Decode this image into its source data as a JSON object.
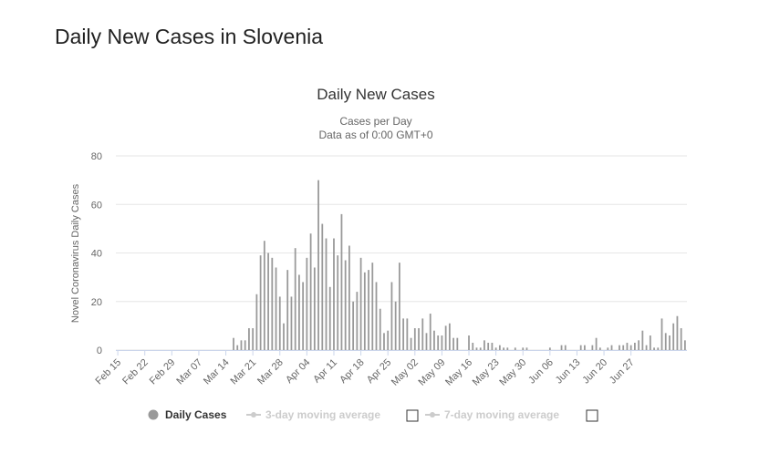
{
  "page": {
    "title": "Daily New Cases in Slovenia"
  },
  "chart_data": {
    "type": "bar",
    "title": "Daily New Cases",
    "subtitle_lines": [
      "Cases per Day",
      "Data as of 0:00 GMT+0"
    ],
    "ylabel": "Novel Coronavirus Daily Cases",
    "xlabel": "",
    "ylim": [
      0,
      80
    ],
    "yticks": [
      0,
      20,
      40,
      60,
      80
    ],
    "grid": true,
    "legend_position": "bottom-center",
    "categories_start": "2020-02-15",
    "x_tick_labels": [
      "Feb 15",
      "Feb 22",
      "Feb 29",
      "Mar 07",
      "Mar 14",
      "Mar 21",
      "Mar 28",
      "Apr 04",
      "Apr 11",
      "Apr 18",
      "Apr 25",
      "May 02",
      "May 09",
      "May 16",
      "May 23",
      "May 30",
      "Jun 06",
      "Jun 13",
      "Jun 20",
      "Jun 27"
    ],
    "series": [
      {
        "name": "Daily Cases",
        "color": "#999999",
        "values": [
          0,
          0,
          0,
          0,
          0,
          0,
          0,
          0,
          0,
          0,
          0,
          0,
          0,
          0,
          0,
          0,
          0,
          0,
          0,
          0,
          0,
          0,
          0,
          0,
          0,
          0,
          0,
          0,
          0,
          0,
          5,
          2,
          4,
          4,
          9,
          9,
          23,
          39,
          45,
          40,
          38,
          34,
          22,
          11,
          33,
          22,
          42,
          31,
          28,
          38,
          48,
          34,
          70,
          52,
          46,
          26,
          46,
          39,
          56,
          37,
          43,
          20,
          24,
          38,
          32,
          33,
          36,
          28,
          17,
          7,
          8,
          28,
          20,
          36,
          13,
          13,
          5,
          9,
          9,
          13,
          7,
          15,
          8,
          6,
          6,
          10,
          11,
          5,
          5,
          0,
          0,
          6,
          3,
          1,
          1,
          4,
          3,
          3,
          1,
          2,
          1,
          1,
          0,
          1,
          0,
          1,
          1,
          0,
          0,
          0,
          0,
          0,
          1,
          0,
          0,
          2,
          2,
          0,
          0,
          0,
          2,
          2,
          0,
          2,
          5,
          1,
          0,
          1,
          2,
          0,
          2,
          2,
          3,
          2,
          3,
          4,
          8,
          2,
          6,
          1,
          1,
          13,
          7,
          6,
          11,
          14,
          9,
          4
        ]
      }
    ],
    "legend": [
      {
        "name": "Daily Cases",
        "active": true
      },
      {
        "name": "3-day moving average",
        "active": false
      },
      {
        "name": "7-day moving average",
        "active": false
      }
    ]
  },
  "colors": {
    "bar": "#999999",
    "grid": "#e6e6e6",
    "axis": "#ccd6eb",
    "inactive": "#cccccc"
  }
}
